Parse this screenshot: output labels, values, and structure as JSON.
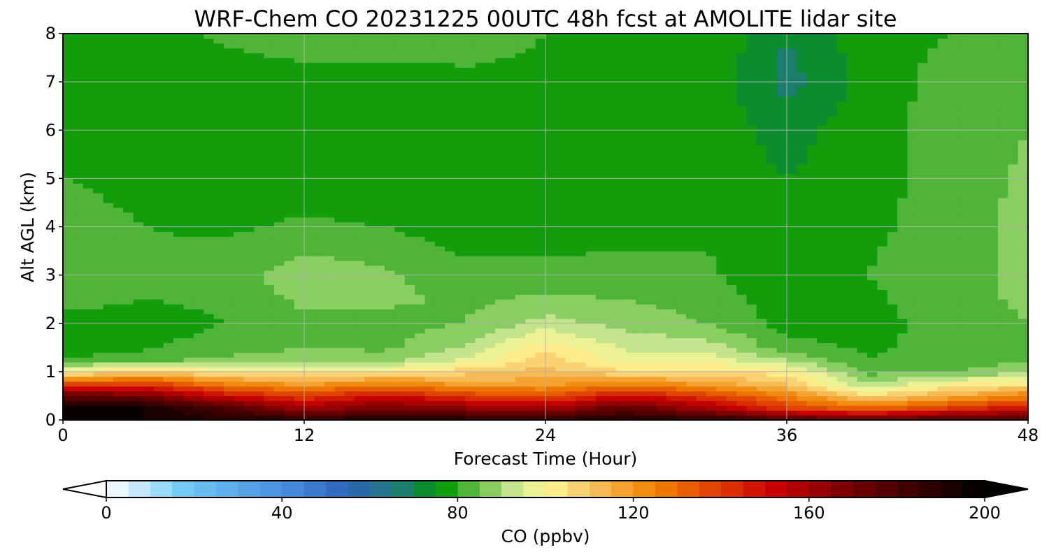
{
  "chart_data": {
    "type": "heatmap",
    "title": "WRF-Chem CO  20231225 00UTC 48h fcst at AMOLITE lidar site",
    "xlabel": "Forecast Time (Hour)",
    "ylabel": "Alt AGL (km)",
    "xlim": [
      0,
      48
    ],
    "ylim": [
      0,
      8
    ],
    "x_ticks": [
      0,
      12,
      24,
      36,
      48
    ],
    "y_ticks": [
      0,
      1,
      2,
      3,
      4,
      5,
      6,
      7,
      8
    ],
    "grid": true,
    "z_x": [
      0,
      4,
      8,
      12,
      16,
      20,
      24,
      28,
      32,
      36,
      40,
      44,
      48
    ],
    "z_y": [
      0,
      0.25,
      0.5,
      0.75,
      1,
      1.25,
      1.5,
      2,
      2.5,
      3,
      4,
      5,
      6,
      7,
      8
    ],
    "z_values": [
      [
        200,
        195,
        190,
        190,
        190,
        190,
        190,
        190,
        190,
        180,
        175,
        180,
        180
      ],
      [
        200,
        195,
        180,
        160,
        170,
        165,
        160,
        175,
        160,
        140,
        130,
        140,
        150
      ],
      [
        175,
        170,
        150,
        140,
        150,
        140,
        135,
        150,
        140,
        125,
        105,
        115,
        125
      ],
      [
        135,
        140,
        125,
        118,
        125,
        118,
        118,
        125,
        118,
        110,
        90,
        100,
        105
      ],
      [
        100,
        108,
        102,
        102,
        102,
        108,
        112,
        105,
        106,
        102,
        83,
        85,
        88
      ],
      [
        80,
        84,
        86,
        88,
        88,
        96,
        108,
        98,
        98,
        90,
        80,
        82,
        85
      ],
      [
        77,
        79,
        83,
        85,
        84,
        90,
        104,
        94,
        93,
        82,
        79,
        82,
        85
      ],
      [
        78,
        77,
        80,
        84,
        83,
        85,
        92,
        88,
        85,
        78,
        78,
        82,
        85
      ],
      [
        82,
        80,
        81,
        86,
        86,
        84,
        86,
        85,
        83,
        77,
        79,
        83,
        86
      ],
      [
        84,
        82,
        83,
        88,
        86,
        82,
        82,
        82,
        81,
        76,
        80,
        83,
        86
      ],
      [
        83,
        80,
        79,
        81,
        80,
        77,
        77,
        78,
        79,
        76,
        79,
        82,
        87
      ],
      [
        80,
        78,
        77,
        77,
        76,
        75,
        75,
        76,
        78,
        75,
        78,
        82,
        86
      ],
      [
        79,
        77,
        76,
        76,
        75,
        75,
        75,
        77,
        78,
        73,
        78,
        82,
        85
      ],
      [
        75,
        77,
        77,
        78,
        78,
        79,
        79,
        79,
        79,
        68,
        77,
        82,
        84
      ],
      [
        76,
        78,
        81,
        83,
        83,
        82,
        80,
        80,
        80,
        70,
        78,
        80,
        82
      ]
    ],
    "colorbar": {
      "label": "CO  (ppbv)",
      "min": 0,
      "max": 200,
      "ticks": [
        0,
        40,
        80,
        120,
        160,
        200
      ],
      "extend": "both",
      "orientation": "horizontal",
      "colormap": [
        {
          "v": 0,
          "c": "#ffffff"
        },
        {
          "v": 18,
          "c": "#6fc8f5"
        },
        {
          "v": 40,
          "c": "#4a8fe0"
        },
        {
          "v": 55,
          "c": "#2c62b8"
        },
        {
          "v": 68,
          "c": "#1a7f6a"
        },
        {
          "v": 76,
          "c": "#009600"
        },
        {
          "v": 92,
          "c": "#bfe38a"
        },
        {
          "v": 100,
          "c": "#fff79a"
        },
        {
          "v": 112,
          "c": "#f7bb58"
        },
        {
          "v": 125,
          "c": "#f08200"
        },
        {
          "v": 140,
          "c": "#dd3a00"
        },
        {
          "v": 152,
          "c": "#c80000"
        },
        {
          "v": 170,
          "c": "#700000"
        },
        {
          "v": 200,
          "c": "#000000"
        }
      ]
    }
  }
}
